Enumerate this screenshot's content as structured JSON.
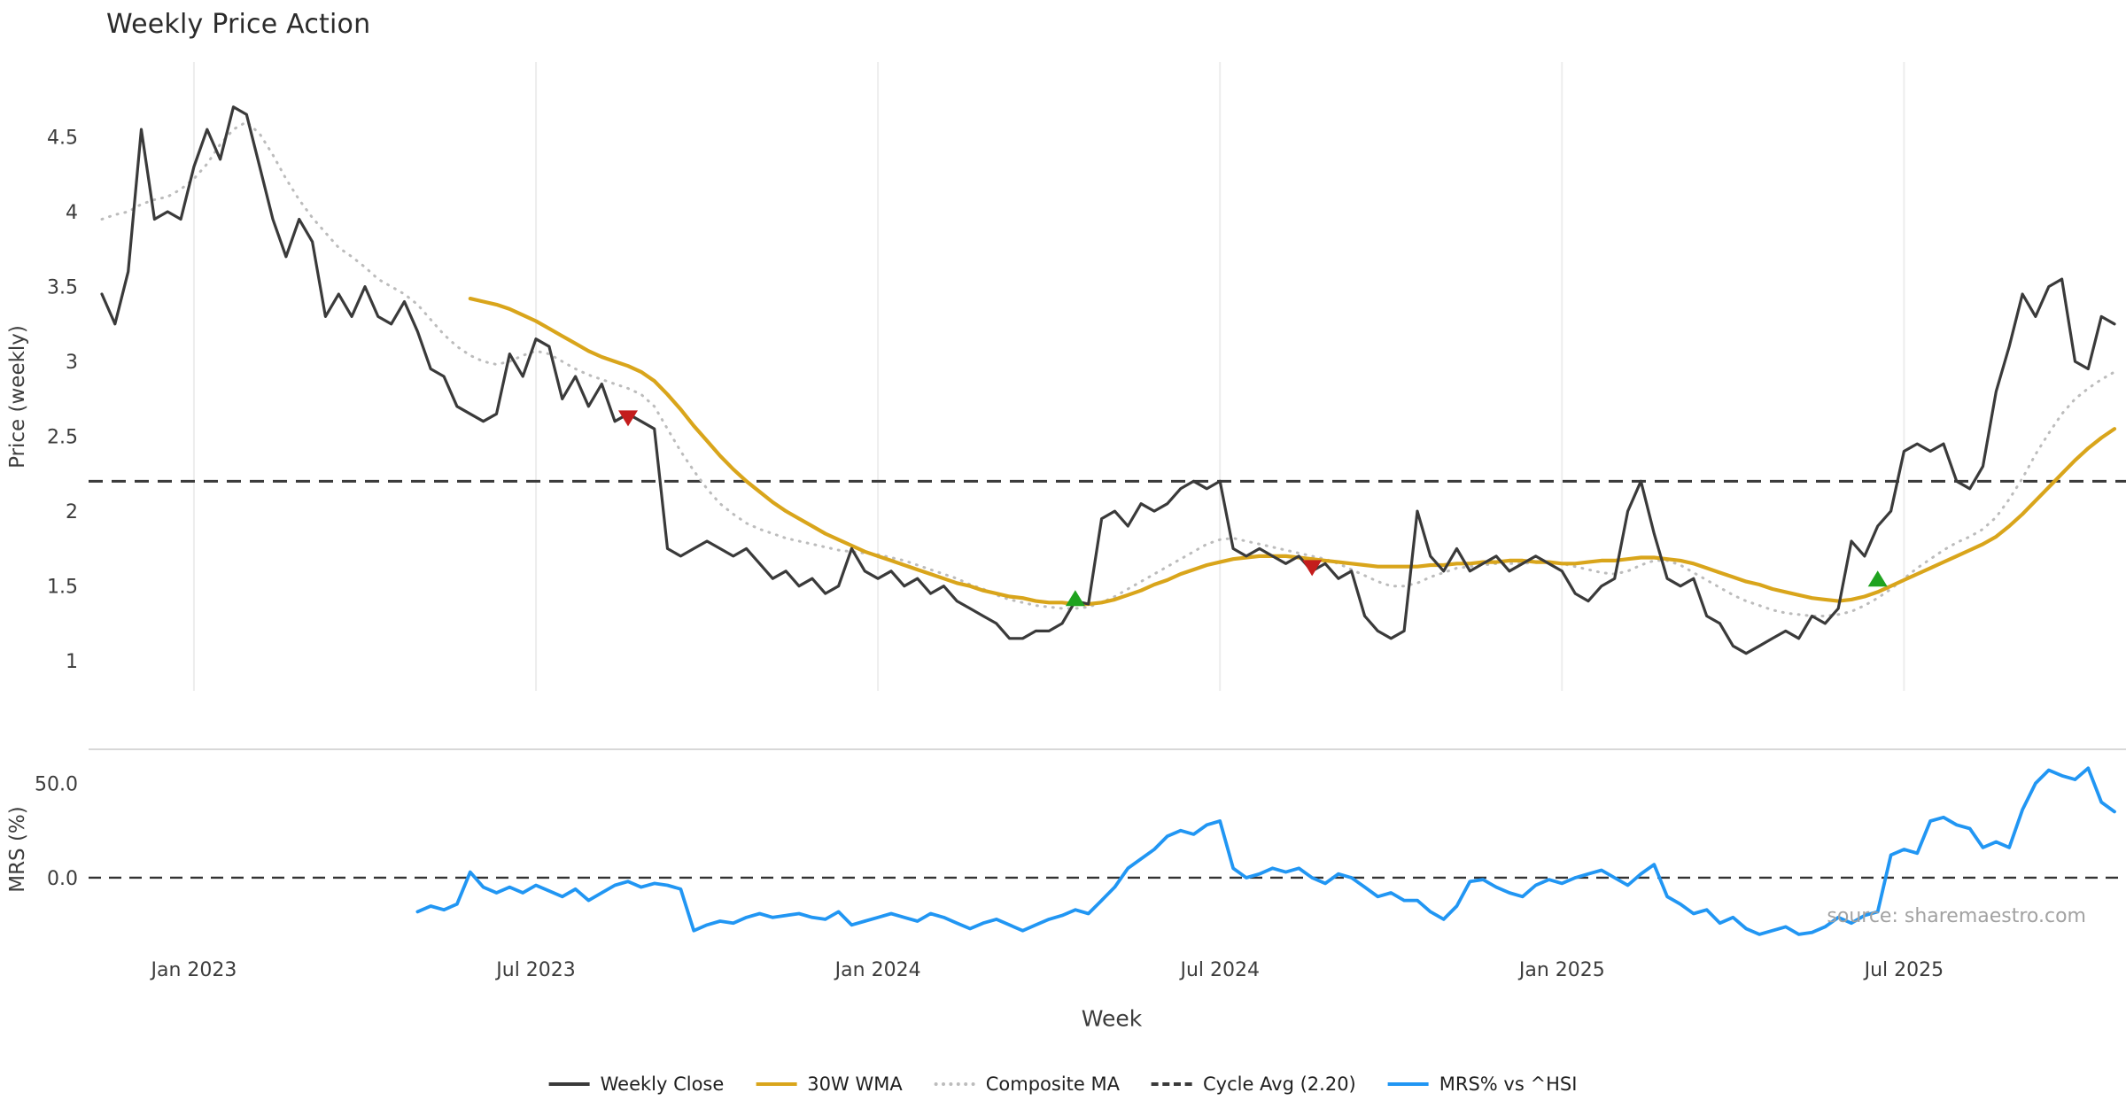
{
  "source_note": "source: sharemaestro.com",
  "chart_data": {
    "type": "line",
    "title": "Weekly Price Action",
    "xlabel": "Week",
    "x_unit": "week index (weekly candles, ~mid-Nov 2022 through late Oct 2025)",
    "x_ticks": [
      {
        "label": "Jan 2023",
        "week": 7
      },
      {
        "label": "Jul 2023",
        "week": 33
      },
      {
        "label": "Jan 2024",
        "week": 59
      },
      {
        "label": "Jul 2024",
        "week": 85
      },
      {
        "label": "Jan 2025",
        "week": 111
      },
      {
        "label": "Jul 2025",
        "week": 137
      }
    ],
    "panels": [
      {
        "name": "price",
        "ylabel": "Price (weekly)",
        "ylim": [
          0.8,
          5.0
        ],
        "yticks": [
          {
            "value": 4.5,
            "label": "4.5"
          },
          {
            "value": 4.0,
            "label": "4"
          },
          {
            "value": 3.5,
            "label": "3.5"
          },
          {
            "value": 3.0,
            "label": "3"
          },
          {
            "value": 2.5,
            "label": "2.5"
          },
          {
            "value": 2.0,
            "label": "2"
          },
          {
            "value": 1.5,
            "label": "1.5"
          },
          {
            "value": 1.0,
            "label": "1"
          }
        ],
        "grid_vertical": true,
        "series": [
          {
            "name": "Weekly Close",
            "color": "#3a3a3a",
            "line": "solid",
            "width": 3.2,
            "start_week": 0,
            "values": [
              3.45,
              3.25,
              3.6,
              4.55,
              3.95,
              4.0,
              3.95,
              4.3,
              4.55,
              4.35,
              4.7,
              4.65,
              4.3,
              3.95,
              3.7,
              3.95,
              3.8,
              3.3,
              3.45,
              3.3,
              3.5,
              3.3,
              3.25,
              3.4,
              3.2,
              2.95,
              2.9,
              2.7,
              2.65,
              2.6,
              2.65,
              3.05,
              2.9,
              3.15,
              3.1,
              2.75,
              2.9,
              2.7,
              2.85,
              2.6,
              2.65,
              2.6,
              2.55,
              1.75,
              1.7,
              1.75,
              1.8,
              1.75,
              1.7,
              1.75,
              1.65,
              1.55,
              1.6,
              1.5,
              1.55,
              1.45,
              1.5,
              1.75,
              1.6,
              1.55,
              1.6,
              1.5,
              1.55,
              1.45,
              1.5,
              1.4,
              1.35,
              1.3,
              1.25,
              1.15,
              1.15,
              1.2,
              1.2,
              1.25,
              1.4,
              1.38,
              1.95,
              2.0,
              1.9,
              2.05,
              2.0,
              2.05,
              2.15,
              2.2,
              2.15,
              2.2,
              1.75,
              1.7,
              1.75,
              1.7,
              1.65,
              1.7,
              1.6,
              1.65,
              1.55,
              1.6,
              1.3,
              1.2,
              1.15,
              1.2,
              2.0,
              1.7,
              1.6,
              1.75,
              1.6,
              1.65,
              1.7,
              1.6,
              1.65,
              1.7,
              1.65,
              1.6,
              1.45,
              1.4,
              1.5,
              1.55,
              2.0,
              2.2,
              1.85,
              1.55,
              1.5,
              1.55,
              1.3,
              1.25,
              1.1,
              1.05,
              1.1,
              1.15,
              1.2,
              1.15,
              1.3,
              1.25,
              1.35,
              1.8,
              1.7,
              1.9,
              2.0,
              2.4,
              2.45,
              2.4,
              2.45,
              2.2,
              2.15,
              2.3,
              2.8,
              3.1,
              3.45,
              3.3,
              3.5,
              3.55,
              3.0,
              2.95,
              3.3,
              3.25
            ]
          },
          {
            "name": "30W WMA",
            "color": "#d9a51b",
            "line": "solid",
            "width": 4.2,
            "start_week": 28,
            "values": [
              3.42,
              3.4,
              3.38,
              3.35,
              3.31,
              3.27,
              3.22,
              3.17,
              3.12,
              3.07,
              3.03,
              3.0,
              2.97,
              2.93,
              2.87,
              2.78,
              2.68,
              2.57,
              2.47,
              2.37,
              2.28,
              2.2,
              2.13,
              2.06,
              2.0,
              1.95,
              1.9,
              1.85,
              1.81,
              1.77,
              1.73,
              1.7,
              1.67,
              1.64,
              1.61,
              1.58,
              1.55,
              1.52,
              1.5,
              1.47,
              1.45,
              1.43,
              1.42,
              1.4,
              1.39,
              1.39,
              1.38,
              1.38,
              1.39,
              1.41,
              1.44,
              1.47,
              1.51,
              1.54,
              1.58,
              1.61,
              1.64,
              1.66,
              1.68,
              1.69,
              1.7,
              1.7,
              1.7,
              1.69,
              1.68,
              1.67,
              1.66,
              1.65,
              1.64,
              1.63,
              1.63,
              1.63,
              1.63,
              1.64,
              1.64,
              1.65,
              1.65,
              1.66,
              1.66,
              1.67,
              1.67,
              1.66,
              1.66,
              1.65,
              1.65,
              1.66,
              1.67,
              1.67,
              1.68,
              1.69,
              1.69,
              1.68,
              1.67,
              1.65,
              1.62,
              1.59,
              1.56,
              1.53,
              1.51,
              1.48,
              1.46,
              1.44,
              1.42,
              1.41,
              1.4,
              1.41,
              1.43,
              1.46,
              1.5,
              1.54,
              1.58,
              1.62,
              1.66,
              1.7,
              1.74,
              1.78,
              1.83,
              1.9,
              1.98,
              2.07,
              2.16,
              2.25,
              2.34,
              2.42,
              2.49,
              2.55
            ]
          },
          {
            "name": "Composite MA",
            "color": "#bcbcbc",
            "line": "dotted",
            "width": 3,
            "start_week": 0,
            "values": [
              3.95,
              3.98,
              4.0,
              4.05,
              4.08,
              4.1,
              4.15,
              4.22,
              4.32,
              4.45,
              4.55,
              4.6,
              4.52,
              4.38,
              4.22,
              4.08,
              3.96,
              3.86,
              3.76,
              3.7,
              3.63,
              3.55,
              3.5,
              3.45,
              3.38,
              3.28,
              3.18,
              3.1,
              3.04,
              3.0,
              2.98,
              3.0,
              3.04,
              3.07,
              3.05,
              3.0,
              2.95,
              2.91,
              2.88,
              2.85,
              2.82,
              2.78,
              2.7,
              2.55,
              2.4,
              2.27,
              2.15,
              2.05,
              1.98,
              1.92,
              1.88,
              1.85,
              1.82,
              1.8,
              1.78,
              1.76,
              1.74,
              1.73,
              1.72,
              1.71,
              1.69,
              1.67,
              1.64,
              1.61,
              1.58,
              1.55,
              1.51,
              1.48,
              1.44,
              1.41,
              1.39,
              1.37,
              1.36,
              1.35,
              1.35,
              1.36,
              1.39,
              1.43,
              1.48,
              1.53,
              1.58,
              1.63,
              1.68,
              1.73,
              1.78,
              1.81,
              1.82,
              1.8,
              1.78,
              1.76,
              1.74,
              1.72,
              1.7,
              1.68,
              1.65,
              1.61,
              1.57,
              1.53,
              1.5,
              1.5,
              1.52,
              1.56,
              1.59,
              1.62,
              1.63,
              1.64,
              1.65,
              1.65,
              1.65,
              1.66,
              1.66,
              1.65,
              1.63,
              1.61,
              1.59,
              1.58,
              1.6,
              1.64,
              1.67,
              1.67,
              1.64,
              1.59,
              1.54,
              1.49,
              1.44,
              1.4,
              1.37,
              1.34,
              1.32,
              1.31,
              1.3,
              1.3,
              1.31,
              1.33,
              1.37,
              1.42,
              1.48,
              1.55,
              1.62,
              1.68,
              1.74,
              1.79,
              1.83,
              1.88,
              1.96,
              2.08,
              2.22,
              2.38,
              2.52,
              2.65,
              2.75,
              2.82,
              2.88,
              2.93
            ]
          },
          {
            "name": "Cycle Avg (2.20)",
            "color": "#3a3a3a",
            "line": "dashed",
            "width": 3,
            "constant": 2.2
          }
        ],
        "markers": [
          {
            "name": "sell-signal",
            "shape": "triangle-down",
            "color": "#c41d1d",
            "points": [
              {
                "week": 40,
                "value": 2.62
              },
              {
                "week": 92,
                "value": 1.62
              }
            ]
          },
          {
            "name": "buy-signal",
            "shape": "triangle-up",
            "color": "#1fa31f",
            "points": [
              {
                "week": 74,
                "value": 1.42
              },
              {
                "week": 135,
                "value": 1.55
              }
            ]
          }
        ]
      },
      {
        "name": "mrs",
        "ylabel": "MRS (%)",
        "ylim": [
          -38,
          68
        ],
        "yticks": [
          {
            "value": 50,
            "label": "50.0"
          },
          {
            "value": 0,
            "label": "0.0"
          }
        ],
        "zero_line": "dashed",
        "series": [
          {
            "name": "MRS% vs ^HSI",
            "color": "#2196f3",
            "line": "solid",
            "width": 3.8,
            "start_week": 24,
            "values": [
              -18,
              -15,
              -17,
              -14,
              3,
              -5,
              -8,
              -5,
              -8,
              -4,
              -7,
              -10,
              -6,
              -12,
              -8,
              -4,
              -2,
              -5,
              -3,
              -4,
              -6,
              -28,
              -25,
              -23,
              -24,
              -21,
              -19,
              -21,
              -20,
              -19,
              -21,
              -22,
              -18,
              -25,
              -23,
              -21,
              -19,
              -21,
              -23,
              -19,
              -21,
              -24,
              -27,
              -24,
              -22,
              -25,
              -28,
              -25,
              -22,
              -20,
              -17,
              -19,
              -12,
              -5,
              5,
              10,
              15,
              22,
              25,
              23,
              28,
              30,
              5,
              0,
              2,
              5,
              3,
              5,
              0,
              -3,
              2,
              0,
              -5,
              -10,
              -8,
              -12,
              -12,
              -18,
              -22,
              -15,
              -2,
              -1,
              -5,
              -8,
              -10,
              -4,
              -1,
              -3,
              0,
              2,
              4,
              0,
              -4,
              2,
              7,
              -10,
              -14,
              -19,
              -17,
              -24,
              -21,
              -27,
              -30,
              -28,
              -26,
              -30,
              -29,
              -26,
              -21,
              -24,
              -20,
              -18,
              12,
              15,
              13,
              30,
              32,
              28,
              26,
              16,
              19,
              16,
              36,
              50,
              57,
              54,
              52,
              58,
              40,
              35
            ]
          }
        ]
      }
    ],
    "legend": [
      {
        "label": "Weekly Close",
        "color": "#3a3a3a",
        "line": "solid"
      },
      {
        "label": "30W WMA",
        "color": "#d9a51b",
        "line": "solid"
      },
      {
        "label": "Composite MA",
        "color": "#bcbcbc",
        "line": "dotted"
      },
      {
        "label": "Cycle Avg (2.20)",
        "color": "#3a3a3a",
        "line": "dashed"
      },
      {
        "label": "MRS% vs ^HSI",
        "color": "#2196f3",
        "line": "solid"
      }
    ]
  }
}
